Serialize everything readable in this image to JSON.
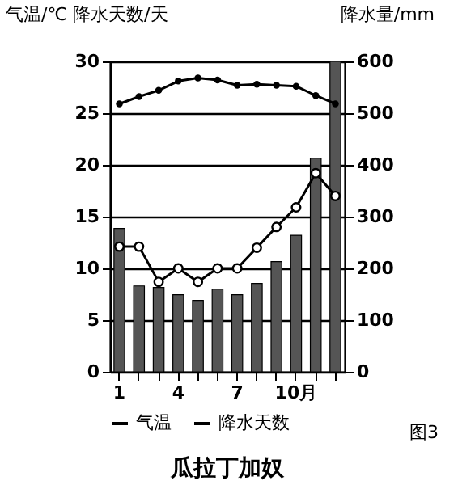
{
  "chart_data": {
    "type": "bar",
    "title": "瓜拉丁加奴",
    "ylabel": "气温/℃ 降水天数/天",
    "y2label": "降水量/mm",
    "annotations": [
      "图3"
    ],
    "categories": [
      "1",
      null,
      null,
      "4",
      null,
      null,
      "7",
      null,
      null,
      "10月",
      null,
      null
    ],
    "ylim": [
      0,
      30
    ],
    "yticks": [
      0,
      5,
      10,
      15,
      20,
      25,
      30
    ],
    "y2lim": [
      0,
      600
    ],
    "y2ticks": [
      0,
      100,
      200,
      300,
      400,
      500,
      600
    ],
    "grid": "y",
    "legend": "bottom",
    "series": [
      {
        "axis": "y2",
        "color": "#555555",
        "values": [
          277,
          166,
          163,
          149,
          138,
          160,
          149,
          171,
          213,
          264,
          413,
          600
        ]
      },
      {
        "type": "line",
        "name": "气温",
        "color": "#000000",
        "marker": "circle",
        "values": [
          25.9,
          26.6,
          27.2,
          28.1,
          28.4,
          28.2,
          27.7,
          27.8,
          27.7,
          27.6,
          26.7,
          25.9
        ]
      },
      {
        "type": "line",
        "name": "降水天数",
        "color": "#000000",
        "marker": "circle",
        "values": [
          12.1,
          12.1,
          8.7,
          10.0,
          8.7,
          10.0,
          10.0,
          12.0,
          14.0,
          15.9,
          19.2,
          17.0
        ]
      }
    ]
  }
}
